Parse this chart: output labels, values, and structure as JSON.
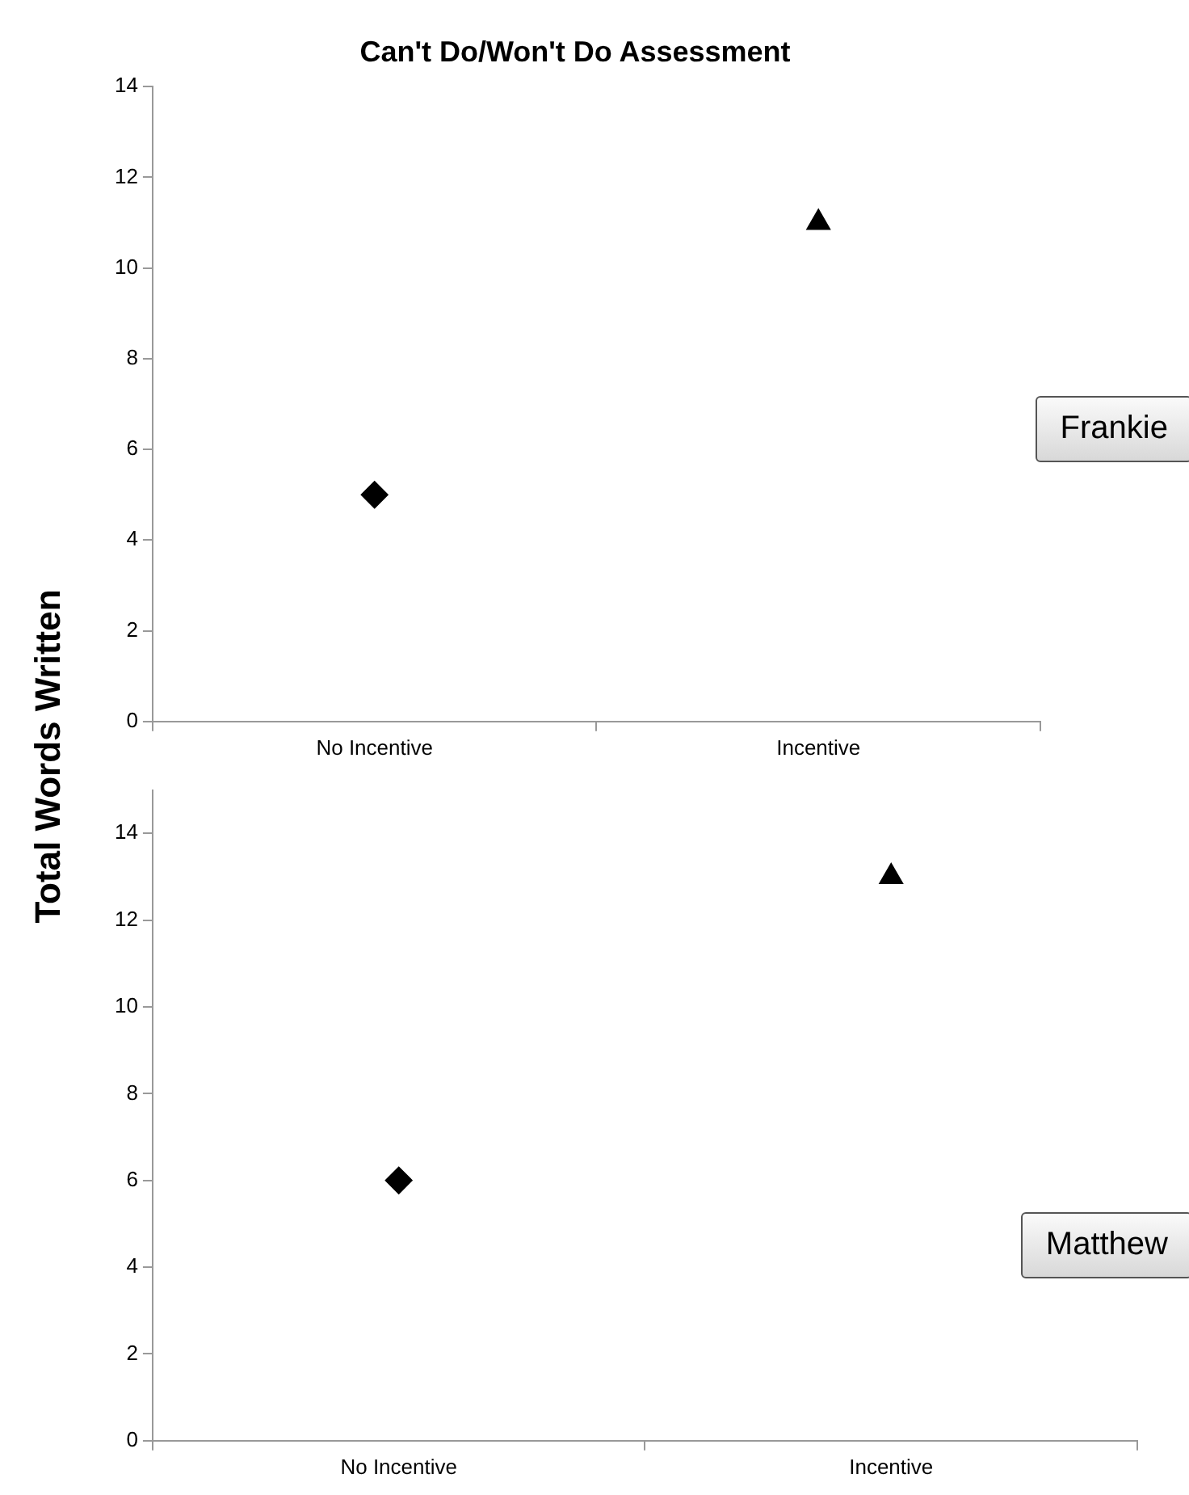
{
  "chart_data": [
    {
      "type": "scatter",
      "title": "Can't Do/Won't Do Assessment",
      "ylabel": "Total Words Written",
      "categories": [
        "No Incentive",
        "Incentive"
      ],
      "series": [
        {
          "color": "#000000",
          "marker": "diamond",
          "values": [
            5,
            null
          ]
        },
        {
          "color": "#000000",
          "marker": "triangle",
          "values": [
            null,
            11
          ]
        }
      ],
      "ylim": [
        0,
        14
      ],
      "yticks": [
        0,
        2,
        4,
        6,
        8,
        10,
        12,
        14
      ],
      "grid": false,
      "legend": false,
      "annotations": [
        "Frankie"
      ]
    },
    {
      "type": "scatter",
      "categories": [
        "No Incentive",
        "Incentive"
      ],
      "series": [
        {
          "color": "#000000",
          "marker": "diamond",
          "values": [
            6,
            null
          ]
        },
        {
          "color": "#000000",
          "marker": "triangle",
          "values": [
            null,
            13
          ]
        }
      ],
      "ylim": [
        0,
        15
      ],
      "yticks": [
        0,
        2,
        4,
        6,
        8,
        10,
        12,
        14
      ],
      "grid": false,
      "legend": false,
      "annotations": [
        "Matthew"
      ]
    }
  ]
}
